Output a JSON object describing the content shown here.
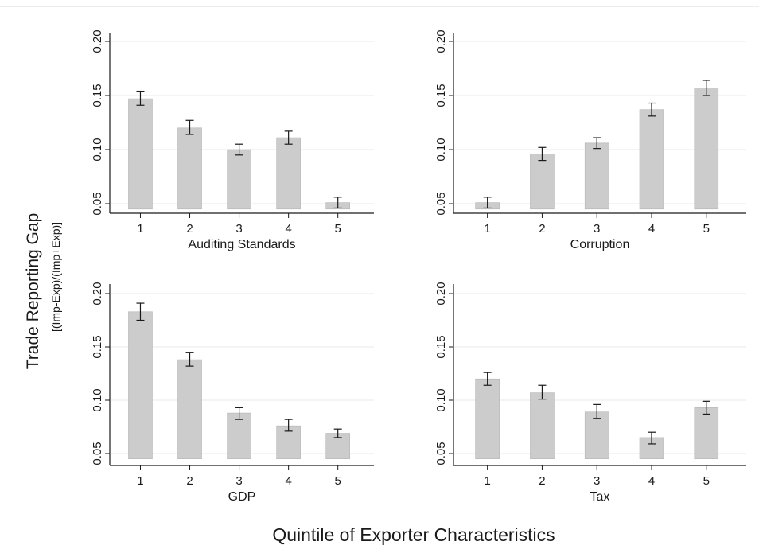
{
  "y_axis_title": "Trade Reporting Gap",
  "y_axis_subtitle": "[(Imp-Exp)/(Imp+Exp)]",
  "x_axis_title": "Quintile of Exporter Characteristics",
  "colors": {
    "bar": "#cccccc",
    "bar_edge": "#b5b5b5",
    "axis": "#1a1a1a",
    "grid": "#eaeaea"
  },
  "chart_data": [
    {
      "type": "bar",
      "xlabel": "Auditing Standards",
      "ylabel": "Trade Reporting Gap",
      "categories": [
        "1",
        "2",
        "3",
        "4",
        "5"
      ],
      "values": [
        0.147,
        0.12,
        0.1,
        0.111,
        0.051
      ],
      "error_low": [
        0.141,
        0.114,
        0.095,
        0.105,
        0.046
      ],
      "error_high": [
        0.154,
        0.127,
        0.105,
        0.117,
        0.056
      ],
      "ylim": [
        0.045,
        0.21
      ],
      "yticks": [
        "0.05",
        "0.10",
        "0.15",
        "0.20"
      ],
      "grid": true
    },
    {
      "type": "bar",
      "xlabel": "Corruption",
      "ylabel": "Trade Reporting Gap",
      "categories": [
        "1",
        "2",
        "3",
        "4",
        "5"
      ],
      "values": [
        0.051,
        0.096,
        0.106,
        0.137,
        0.157
      ],
      "error_low": [
        0.046,
        0.09,
        0.101,
        0.131,
        0.15
      ],
      "error_high": [
        0.056,
        0.102,
        0.111,
        0.143,
        0.164
      ],
      "ylim": [
        0.045,
        0.21
      ],
      "yticks": [
        "0.05",
        "0.10",
        "0.15",
        "0.20"
      ],
      "grid": true
    },
    {
      "type": "bar",
      "xlabel": "GDP",
      "ylabel": "Trade Reporting Gap",
      "categories": [
        "1",
        "2",
        "3",
        "4",
        "5"
      ],
      "values": [
        0.183,
        0.138,
        0.088,
        0.076,
        0.069
      ],
      "error_low": [
        0.175,
        0.132,
        0.082,
        0.071,
        0.065
      ],
      "error_high": [
        0.191,
        0.145,
        0.093,
        0.082,
        0.073
      ],
      "ylim": [
        0.045,
        0.21
      ],
      "yticks": [
        "0.05",
        "0.10",
        "0.15",
        "0.20"
      ],
      "grid": true
    },
    {
      "type": "bar",
      "xlabel": "Tax",
      "ylabel": "Trade Reporting Gap",
      "categories": [
        "1",
        "2",
        "3",
        "4",
        "5"
      ],
      "values": [
        0.12,
        0.107,
        0.089,
        0.065,
        0.093
      ],
      "error_low": [
        0.114,
        0.101,
        0.083,
        0.059,
        0.087
      ],
      "error_high": [
        0.126,
        0.114,
        0.096,
        0.07,
        0.099
      ],
      "ylim": [
        0.045,
        0.21
      ],
      "yticks": [
        "0.05",
        "0.10",
        "0.15",
        "0.20"
      ],
      "grid": true
    }
  ]
}
